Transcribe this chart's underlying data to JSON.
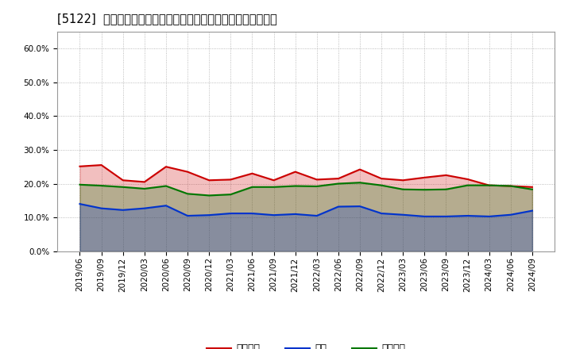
{
  "title": "[5122]  売上債権、在庫、買入債務の総資産に対する比率の推移",
  "dates": [
    "2019/06",
    "2019/09",
    "2019/12",
    "2020/03",
    "2020/06",
    "2020/09",
    "2020/12",
    "2021/03",
    "2021/06",
    "2021/09",
    "2021/12",
    "2022/03",
    "2022/06",
    "2022/09",
    "2022/12",
    "2023/03",
    "2023/06",
    "2023/09",
    "2023/12",
    "2024/03",
    "2024/06",
    "2024/09"
  ],
  "urikake": [
    0.251,
    0.255,
    0.21,
    0.205,
    0.25,
    0.235,
    0.21,
    0.212,
    0.23,
    0.21,
    0.235,
    0.212,
    0.215,
    0.242,
    0.215,
    0.21,
    0.218,
    0.225,
    0.213,
    0.195,
    0.193,
    0.19
  ],
  "zaiko": [
    0.14,
    0.127,
    0.122,
    0.127,
    0.135,
    0.105,
    0.107,
    0.112,
    0.112,
    0.107,
    0.11,
    0.105,
    0.132,
    0.133,
    0.112,
    0.108,
    0.103,
    0.103,
    0.105,
    0.103,
    0.108,
    0.12
  ],
  "kaiire": [
    0.197,
    0.194,
    0.19,
    0.185,
    0.193,
    0.17,
    0.165,
    0.168,
    0.19,
    0.19,
    0.193,
    0.192,
    0.2,
    0.203,
    0.195,
    0.183,
    0.182,
    0.183,
    0.195,
    0.195,
    0.193,
    0.183
  ],
  "urikake_color": "#cc0000",
  "zaiko_color": "#0033cc",
  "kaiire_color": "#007700",
  "legend_label_urikake": "売上債権",
  "legend_label_zaiko": "在庫",
  "legend_label_kaiire": "買入債務",
  "ylim": [
    0.0,
    0.65
  ],
  "yticks": [
    0.0,
    0.1,
    0.2,
    0.3,
    0.4,
    0.5,
    0.6
  ],
  "background_color": "#ffffff",
  "plot_bg_color": "#ffffff",
  "grid_color": "#aaaaaa",
  "title_fontsize": 10.5,
  "tick_fontsize": 7.5,
  "legend_fontsize": 9
}
